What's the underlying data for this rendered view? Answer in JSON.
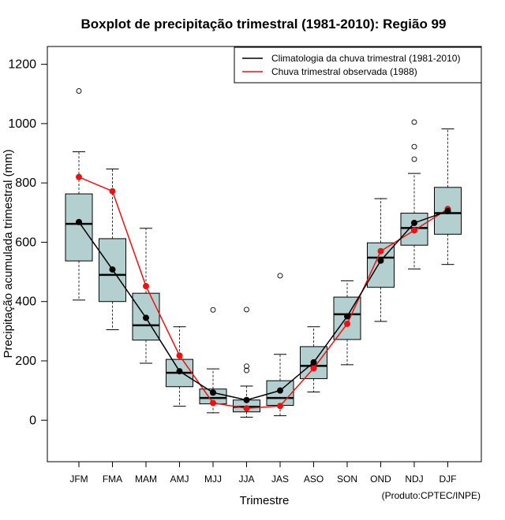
{
  "chart_data": {
    "type": "boxplot",
    "title": "Boxplot de precipitação trimestral (1981-2010): Região 99",
    "xlabel": "Trimestre",
    "ylabel": "Precipitação acumulada trimestral (mm)",
    "credit": "(Produto:CPTEC/INPE)",
    "ylim": [
      -140,
      1260
    ],
    "yticks": [
      0,
      200,
      400,
      600,
      800,
      1000,
      1200
    ],
    "categories": [
      "JFM",
      "FMA",
      "MAM",
      "AMJ",
      "MJJ",
      "JJA",
      "JAS",
      "ASO",
      "SON",
      "OND",
      "NDJ",
      "DJF"
    ],
    "boxes": [
      {
        "whisker_low": 405,
        "q1": 537,
        "median": 662,
        "q3": 763,
        "whisker_high": 905,
        "outliers": [
          1110
        ]
      },
      {
        "whisker_low": 305,
        "q1": 400,
        "median": 490,
        "q3": 612,
        "whisker_high": 847,
        "outliers": []
      },
      {
        "whisker_low": 192,
        "q1": 270,
        "median": 320,
        "q3": 428,
        "whisker_high": 647,
        "outliers": []
      },
      {
        "whisker_low": 47,
        "q1": 113,
        "median": 160,
        "q3": 205,
        "whisker_high": 315,
        "outliers": []
      },
      {
        "whisker_low": 25,
        "q1": 55,
        "median": 75,
        "q3": 105,
        "whisker_high": 173,
        "outliers": [
          372
        ]
      },
      {
        "whisker_low": 10,
        "q1": 28,
        "median": 45,
        "q3": 68,
        "whisker_high": 115,
        "outliers": [
          168,
          182,
          373
        ]
      },
      {
        "whisker_low": 15,
        "q1": 50,
        "median": 75,
        "q3": 133,
        "whisker_high": 222,
        "outliers": [
          487
        ]
      },
      {
        "whisker_low": 95,
        "q1": 140,
        "median": 183,
        "q3": 248,
        "whisker_high": 315,
        "outliers": []
      },
      {
        "whisker_low": 187,
        "q1": 272,
        "median": 357,
        "q3": 415,
        "whisker_high": 470,
        "outliers": []
      },
      {
        "whisker_low": 333,
        "q1": 448,
        "median": 548,
        "q3": 598,
        "whisker_high": 747,
        "outliers": []
      },
      {
        "whisker_low": 510,
        "q1": 590,
        "median": 648,
        "q3": 698,
        "whisker_high": 832,
        "outliers": [
          880,
          922,
          1005
        ]
      },
      {
        "whisker_low": 525,
        "q1": 627,
        "median": 698,
        "q3": 785,
        "whisker_high": 982,
        "outliers": []
      }
    ],
    "series": [
      {
        "name": "Climatologia da chuva trimestral (1981-2010)",
        "color": "#000000",
        "values": [
          668,
          508,
          345,
          165,
          93,
          68,
          100,
          195,
          350,
          538,
          665,
          705
        ]
      },
      {
        "name": "Chuva trimestral observada (1988)",
        "color": "#ee1111",
        "values": [
          820,
          772,
          452,
          218,
          58,
          40,
          48,
          175,
          325,
          570,
          640,
          712
        ]
      }
    ],
    "legend": "top-right",
    "box_fill": "#b3cfcf"
  }
}
